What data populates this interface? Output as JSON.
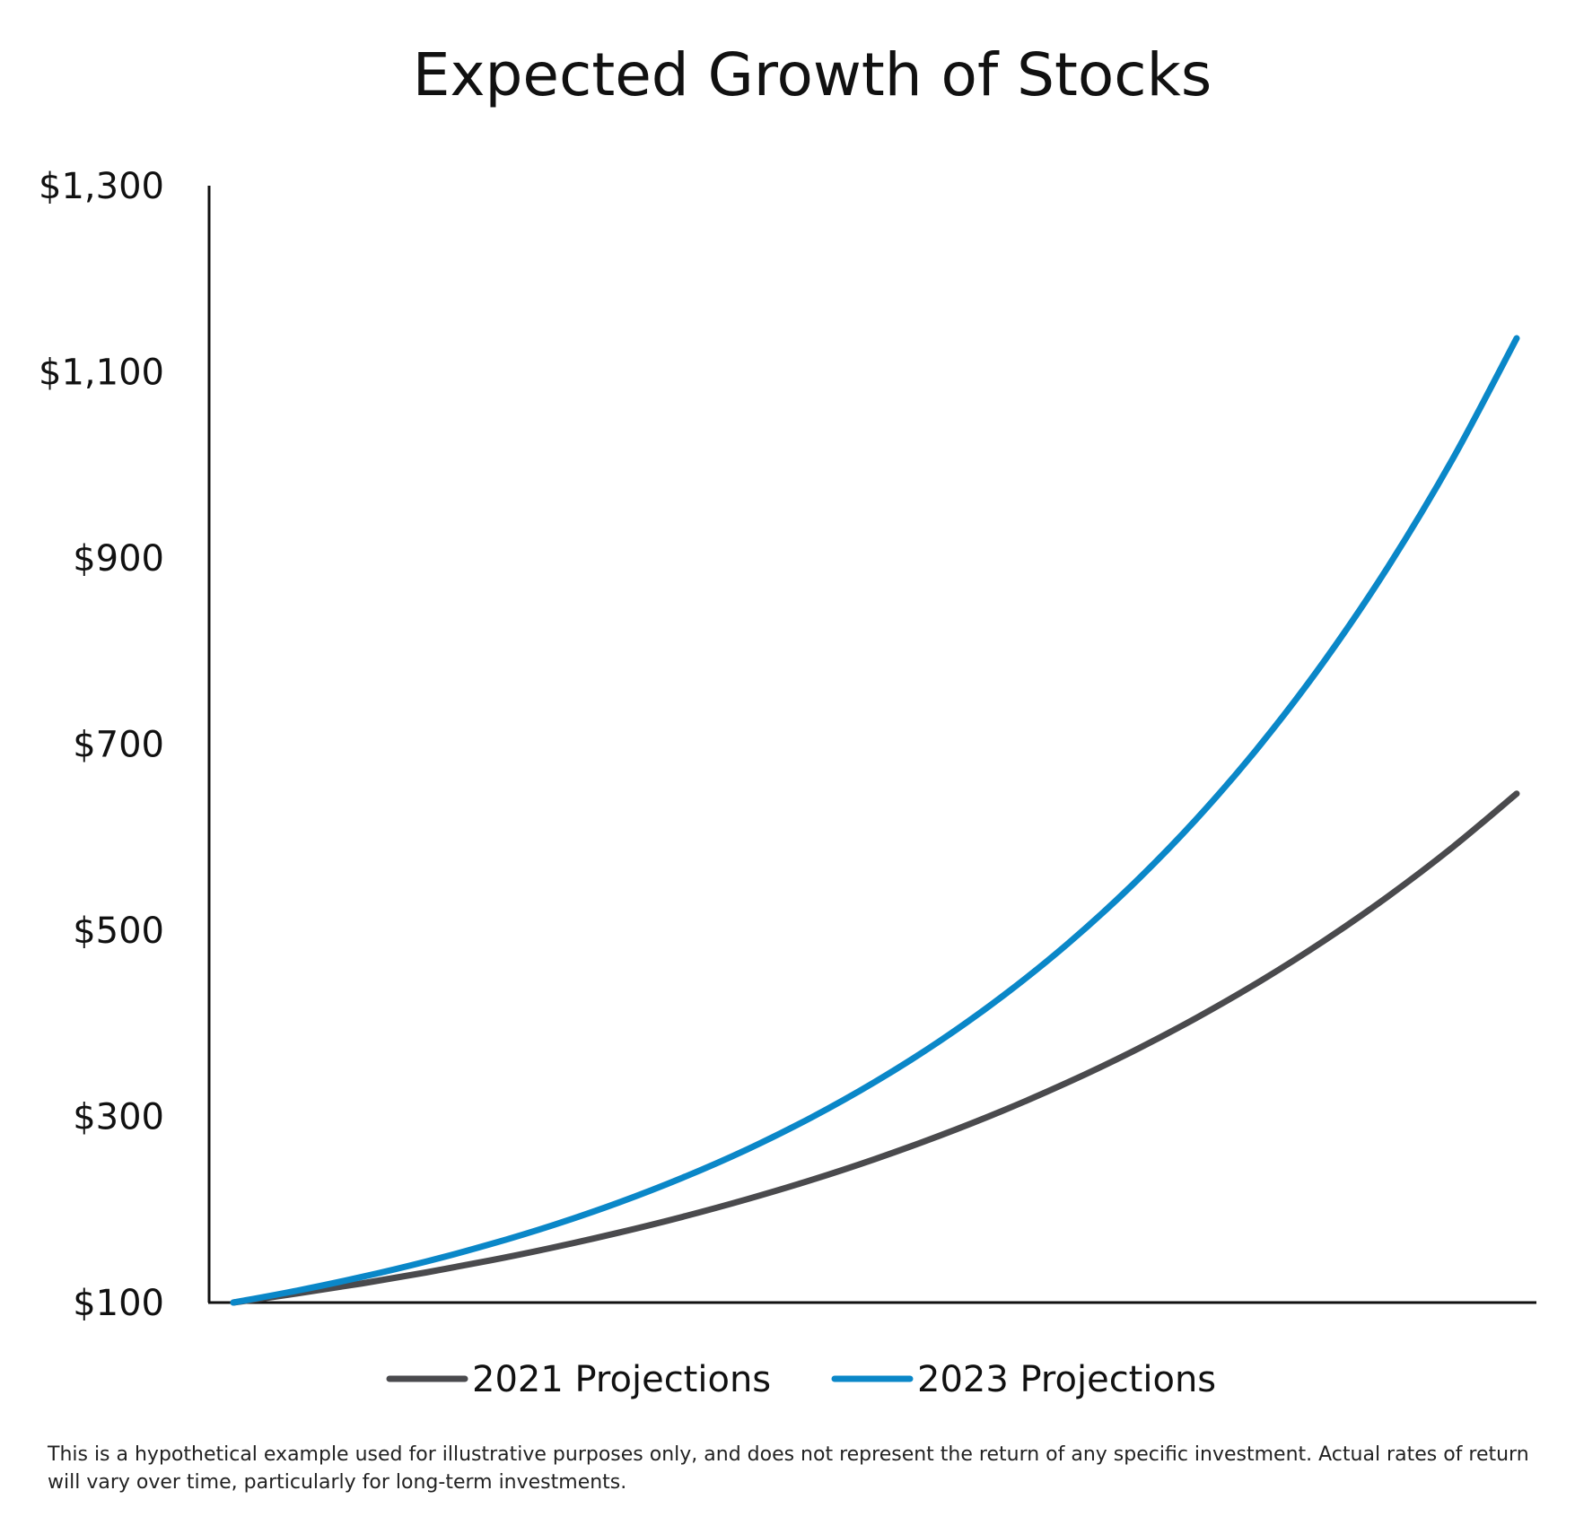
{
  "chart_data": {
    "type": "line",
    "title": "Expected Growth of Stocks",
    "xlabel": "",
    "ylabel": "",
    "x": [
      0,
      1,
      2,
      3,
      4,
      5,
      6,
      7,
      8,
      9,
      10,
      11,
      12,
      13,
      14,
      15,
      16,
      17,
      18,
      19,
      20
    ],
    "ylim": [
      100,
      1300
    ],
    "yticks": [
      100,
      300,
      500,
      700,
      900,
      1100,
      1300
    ],
    "ytick_labels": [
      "$100",
      "$300",
      "$500",
      "$700",
      "$900",
      "$1,100",
      "$1,300"
    ],
    "series": [
      {
        "name": "2021 Projections",
        "color": "#4a4a4d",
        "values": [
          100,
          109.8,
          120.5,
          132.3,
          145.2,
          159.4,
          175.0,
          192.1,
          210.9,
          231.5,
          254.2,
          279.1,
          306.4,
          336.4,
          369.3,
          405.5,
          445.2,
          488.8,
          536.6,
          589.1,
          646.8
        ]
      },
      {
        "name": "2023 Projections",
        "color": "#0a87c8",
        "values": [
          100,
          112.9,
          127.5,
          144.0,
          162.6,
          183.6,
          207.3,
          234.1,
          264.3,
          298.5,
          337.1,
          380.6,
          429.8,
          485.3,
          548.0,
          618.8,
          698.8,
          789.1,
          891.0,
          1006.1,
          1136.1
        ]
      }
    ],
    "legend_position": "bottom-center",
    "grid": false
  },
  "disclaimer": "This is a hypothetical example used for illustrative purposes only, and does not represent the return of any specific investment. Actual rates of return will vary over time, particularly for long-term investments."
}
